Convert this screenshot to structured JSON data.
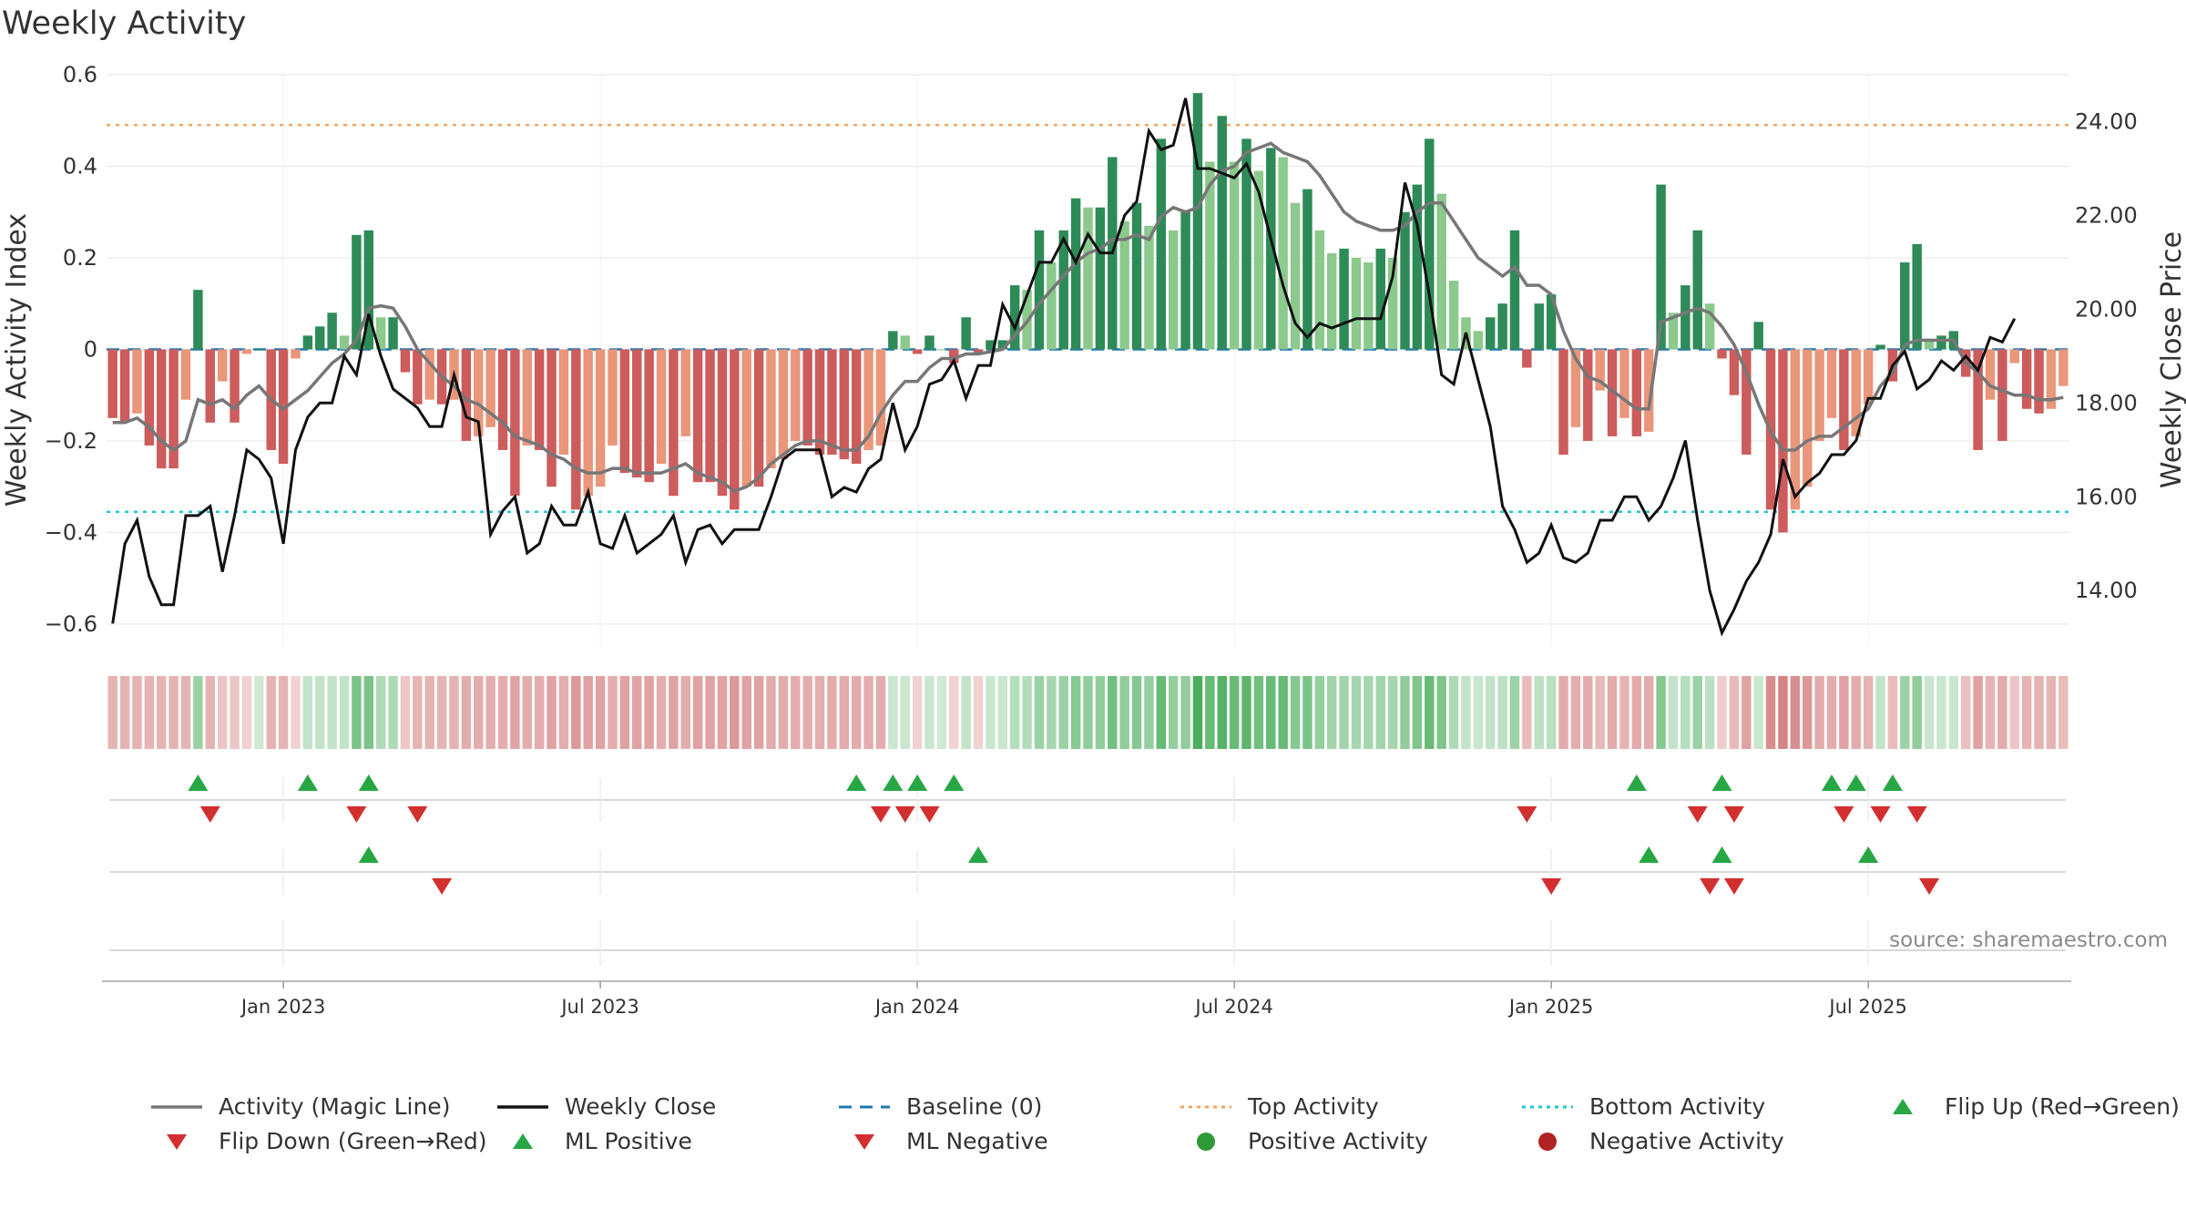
{
  "title": "Weekly Activity",
  "source": "source: sharemaestro.com",
  "colors": {
    "pos_dark": "#2e8b57",
    "pos_light": "#8cc98c",
    "neg_dark": "#cd5c5c",
    "neg_light": "#e9967a",
    "magic": "#777777",
    "close": "#111111",
    "baseline": "#1f77b4",
    "top": "#f4a460",
    "bottom": "#22c4d8",
    "up": "#27a744",
    "down": "#d32f2f"
  },
  "chart_data": {
    "type": "bar",
    "title": "Weekly Activity",
    "ylabel": "Weekly Activity Index",
    "y2label": "Weekly Close Price",
    "ylim": [
      -0.65,
      0.6
    ],
    "y2lim": [
      12.8,
      25.0
    ],
    "yticks": [
      {
        "v": 0.6,
        "label": "0.6"
      },
      {
        "v": 0.4,
        "label": "0.4"
      },
      {
        "v": 0.2,
        "label": "0.2"
      },
      {
        "v": 0,
        "label": "0"
      },
      {
        "v": -0.2,
        "label": "−0.2"
      },
      {
        "v": -0.4,
        "label": "−0.4"
      },
      {
        "v": -0.6,
        "label": "−0.6"
      }
    ],
    "y2ticks": [
      "24.00",
      "22.00",
      "20.00",
      "18.00",
      "16.00",
      "14.00"
    ],
    "x_labels": [
      {
        "week": 14.5,
        "label": "Jan 2023"
      },
      {
        "week": 40.5,
        "label": "Jul 2023"
      },
      {
        "week": 66.5,
        "label": "Jan 2024"
      },
      {
        "week": 92.5,
        "label": "Jul 2024"
      },
      {
        "week": 118.5,
        "label": "Jan 2025"
      },
      {
        "week": 144.5,
        "label": "Jul 2025"
      }
    ],
    "top_activity": 0.49,
    "bottom_activity": -0.355,
    "baseline": 0,
    "activity": [
      -0.15,
      -0.16,
      -0.14,
      -0.21,
      -0.26,
      -0.26,
      -0.11,
      0.13,
      -0.16,
      -0.07,
      -0.16,
      -0.01,
      0,
      -0.22,
      -0.25,
      -0.02,
      0.03,
      0.05,
      0.08,
      0.03,
      0.25,
      0.26,
      0.07,
      0.07,
      -0.05,
      -0.12,
      -0.11,
      -0.12,
      -0.11,
      -0.2,
      -0.19,
      -0.17,
      -0.22,
      -0.32,
      -0.21,
      -0.22,
      -0.3,
      -0.23,
      -0.35,
      -0.32,
      -0.3,
      -0.21,
      -0.27,
      -0.28,
      -0.29,
      -0.25,
      -0.32,
      -0.19,
      -0.29,
      -0.29,
      -0.32,
      -0.35,
      -0.3,
      -0.3,
      -0.26,
      -0.24,
      -0.2,
      -0.21,
      -0.23,
      -0.23,
      -0.24,
      -0.25,
      -0.22,
      -0.21,
      0.04,
      0.03,
      -0.01,
      0.03,
      0,
      -0.03,
      0.07,
      -0.01,
      0.02,
      0.02,
      0.14,
      0.13,
      0.26,
      0.19,
      0.26,
      0.33,
      0.31,
      0.31,
      0.42,
      0.28,
      0.32,
      0.27,
      0.46,
      0.26,
      0.3,
      0.56,
      0.41,
      0.51,
      0.41,
      0.46,
      0.39,
      0.44,
      0.42,
      0.32,
      0.35,
      0.26,
      0.21,
      0.22,
      0.2,
      0.19,
      0.22,
      0.2,
      0.3,
      0.36,
      0.46,
      0.34,
      0.15,
      0.07,
      0.04,
      0.07,
      0.1,
      0.26,
      -0.04,
      0.1,
      0.12,
      -0.23,
      -0.17,
      -0.2,
      -0.09,
      -0.19,
      -0.15,
      -0.19,
      -0.18,
      0.36,
      0.08,
      0.14,
      0.26,
      0.1,
      -0.02,
      -0.1,
      -0.23,
      0.06,
      -0.35,
      -0.4,
      -0.35,
      -0.3,
      -0.2,
      -0.15,
      -0.22,
      -0.19,
      -0.12,
      0.01,
      -0.07,
      0.19,
      0.23,
      0.02,
      0.03,
      0.04,
      -0.06,
      -0.22,
      -0.11,
      -0.2,
      -0.03,
      -0.13,
      -0.14,
      -0.13,
      -0.08
    ],
    "magic_line": [
      -0.16,
      -0.16,
      -0.15,
      -0.17,
      -0.2,
      -0.22,
      -0.2,
      -0.11,
      -0.12,
      -0.11,
      -0.13,
      -0.1,
      -0.08,
      -0.11,
      -0.13,
      -0.11,
      -0.09,
      -0.06,
      -0.03,
      -0.01,
      0.02,
      0.09,
      0.095,
      0.09,
      0.05,
      0,
      -0.03,
      -0.06,
      -0.08,
      -0.11,
      -0.12,
      -0.14,
      -0.16,
      -0.19,
      -0.2,
      -0.21,
      -0.23,
      -0.24,
      -0.26,
      -0.27,
      -0.27,
      -0.26,
      -0.26,
      -0.27,
      -0.27,
      -0.27,
      -0.26,
      -0.25,
      -0.27,
      -0.28,
      -0.29,
      -0.31,
      -0.3,
      -0.28,
      -0.25,
      -0.23,
      -0.21,
      -0.2,
      -0.2,
      -0.21,
      -0.22,
      -0.22,
      -0.19,
      -0.14,
      -0.1,
      -0.07,
      -0.07,
      -0.04,
      -0.02,
      -0.02,
      -0.01,
      -0.01,
      -0.005,
      0,
      0.03,
      0.06,
      0.1,
      0.13,
      0.16,
      0.19,
      0.21,
      0.22,
      0.24,
      0.24,
      0.25,
      0.24,
      0.29,
      0.31,
      0.3,
      0.31,
      0.36,
      0.39,
      0.4,
      0.43,
      0.44,
      0.45,
      0.43,
      0.42,
      0.41,
      0.38,
      0.34,
      0.3,
      0.28,
      0.27,
      0.26,
      0.26,
      0.27,
      0.3,
      0.32,
      0.32,
      0.28,
      0.24,
      0.2,
      0.18,
      0.16,
      0.18,
      0.14,
      0.14,
      0.12,
      0.04,
      -0.02,
      -0.06,
      -0.07,
      -0.09,
      -0.11,
      -0.13,
      -0.13,
      0.06,
      0.07,
      0.08,
      0.09,
      0.08,
      0.05,
      0.01,
      -0.05,
      -0.12,
      -0.18,
      -0.22,
      -0.22,
      -0.2,
      -0.19,
      -0.19,
      -0.17,
      -0.15,
      -0.13,
      -0.08,
      -0.05,
      0.01,
      0.02,
      0.02,
      0.02,
      0.02,
      -0.03,
      -0.05,
      -0.08,
      -0.09,
      -0.1,
      -0.1,
      -0.11,
      -0.11,
      -0.105
    ],
    "weekly_close": [
      13.3,
      15.0,
      15.5,
      14.3,
      13.7,
      13.7,
      15.6,
      15.6,
      15.8,
      14.4,
      15.6,
      17.0,
      16.8,
      16.4,
      15.0,
      17.0,
      17.7,
      18.0,
      18.0,
      19.0,
      18.6,
      19.9,
      19.0,
      18.3,
      18.1,
      17.9,
      17.5,
      17.5,
      18.6,
      17.7,
      17.6,
      15.2,
      15.7,
      16.0,
      14.8,
      15.0,
      15.8,
      15.4,
      15.4,
      16.1,
      15.0,
      14.9,
      15.6,
      14.8,
      15.0,
      15.2,
      15.6,
      14.6,
      15.3,
      15.4,
      15.0,
      15.3,
      15.3,
      15.3,
      16.0,
      16.8,
      17.0,
      17.0,
      17.0,
      16.0,
      16.2,
      16.1,
      16.6,
      16.8,
      18.0,
      17.0,
      17.5,
      18.4,
      18.5,
      18.9,
      18.1,
      18.8,
      18.8,
      20.1,
      19.6,
      20.3,
      21.0,
      21.0,
      21.5,
      21.0,
      21.6,
      21.2,
      21.2,
      22.0,
      22.3,
      23.8,
      23.4,
      23.5,
      24.5,
      23.0,
      23.0,
      22.9,
      22.8,
      23.1,
      22.5,
      21.5,
      20.5,
      19.7,
      19.4,
      19.7,
      19.6,
      19.7,
      19.8,
      19.8,
      19.8,
      20.7,
      22.7,
      21.8,
      20.3,
      18.6,
      18.4,
      19.5,
      18.5,
      17.5,
      15.8,
      15.3,
      14.6,
      14.8,
      15.4,
      14.7,
      14.6,
      14.8,
      15.5,
      15.5,
      16.0,
      16.0,
      15.5,
      15.8,
      16.4,
      17.2,
      15.5,
      14.0,
      13.1,
      13.6,
      14.2,
      14.6,
      15.2,
      16.8,
      16.0,
      16.3,
      16.5,
      16.9,
      16.9,
      17.2,
      18.1,
      18.1,
      18.8,
      19.1,
      18.3,
      18.5,
      18.9,
      18.7,
      19.0,
      18.7,
      19.4,
      19.3,
      19.8
    ],
    "strength": [
      0.25,
      0.25,
      0.25,
      0.25,
      0.25,
      0.25,
      0.25,
      0.35,
      0.25,
      0.15,
      0.15,
      0.08,
      0.08,
      0.25,
      0.25,
      0.08,
      0.15,
      0.15,
      0.15,
      0.15,
      0.5,
      0.5,
      0.25,
      0.25,
      0.15,
      0.25,
      0.25,
      0.25,
      0.25,
      0.28,
      0.28,
      0.28,
      0.28,
      0.35,
      0.28,
      0.28,
      0.35,
      0.28,
      0.4,
      0.35,
      0.35,
      0.28,
      0.35,
      0.35,
      0.35,
      0.28,
      0.35,
      0.28,
      0.35,
      0.35,
      0.35,
      0.4,
      0.35,
      0.35,
      0.3,
      0.3,
      0.28,
      0.28,
      0.28,
      0.28,
      0.3,
      0.3,
      0.28,
      0.28,
      0.12,
      0.12,
      0.08,
      0.12,
      0.08,
      0.08,
      0.15,
      0.08,
      0.12,
      0.12,
      0.22,
      0.22,
      0.35,
      0.3,
      0.35,
      0.45,
      0.4,
      0.4,
      0.55,
      0.4,
      0.45,
      0.38,
      0.6,
      0.38,
      0.4,
      0.75,
      0.6,
      0.7,
      0.6,
      0.65,
      0.55,
      0.6,
      0.6,
      0.45,
      0.5,
      0.38,
      0.32,
      0.32,
      0.3,
      0.3,
      0.32,
      0.3,
      0.4,
      0.48,
      0.6,
      0.48,
      0.25,
      0.15,
      0.12,
      0.15,
      0.18,
      0.35,
      0.2,
      0.18,
      0.2,
      0.3,
      0.28,
      0.3,
      0.22,
      0.3,
      0.25,
      0.3,
      0.3,
      0.45,
      0.15,
      0.22,
      0.35,
      0.18,
      0.12,
      0.22,
      0.35,
      0.12,
      0.45,
      0.5,
      0.45,
      0.4,
      0.3,
      0.28,
      0.35,
      0.3,
      0.25,
      0.15,
      0.2,
      0.35,
      0.4,
      0.12,
      0.12,
      0.12,
      0.18,
      0.35,
      0.25,
      0.3,
      0.15,
      0.25,
      0.25,
      0.25,
      0.2
    ],
    "flip_up": [
      7,
      16,
      21,
      61,
      64,
      66,
      69,
      125,
      132,
      141,
      143,
      146
    ],
    "flip_down": [
      8,
      20,
      25,
      63,
      65,
      67,
      116,
      130,
      133,
      142,
      145,
      148
    ],
    "ml_positive": [
      21,
      71,
      126,
      132,
      144
    ],
    "ml_negative": [
      27,
      118,
      131,
      133,
      149
    ]
  },
  "legend": [
    {
      "label": "Activity (Magic Line)",
      "symbol": "line",
      "color": "#777777"
    },
    {
      "label": "Weekly Close",
      "symbol": "line",
      "color": "#111111"
    },
    {
      "label": "Baseline (0)",
      "symbol": "dash",
      "color": "#1f77b4"
    },
    {
      "label": "Top Activity",
      "symbol": "dot-line",
      "color": "#f4a460"
    },
    {
      "label": "Bottom Activity",
      "symbol": "dot-line",
      "color": "#22c4d8"
    },
    {
      "label": "Flip Up (Red→Green)",
      "symbol": "tri-up",
      "color": "#27a744"
    },
    {
      "label": "Flip Down (Green→Red)",
      "symbol": "tri-down",
      "color": "#d32f2f"
    },
    {
      "label": "ML Positive",
      "symbol": "tri-up",
      "color": "#27a744"
    },
    {
      "label": "ML Negative",
      "symbol": "tri-down",
      "color": "#d32f2f"
    },
    {
      "label": "Positive Activity",
      "symbol": "circle",
      "color": "#2e9a3a"
    },
    {
      "label": "Negative Activity",
      "symbol": "circle",
      "color": "#b22222"
    }
  ]
}
